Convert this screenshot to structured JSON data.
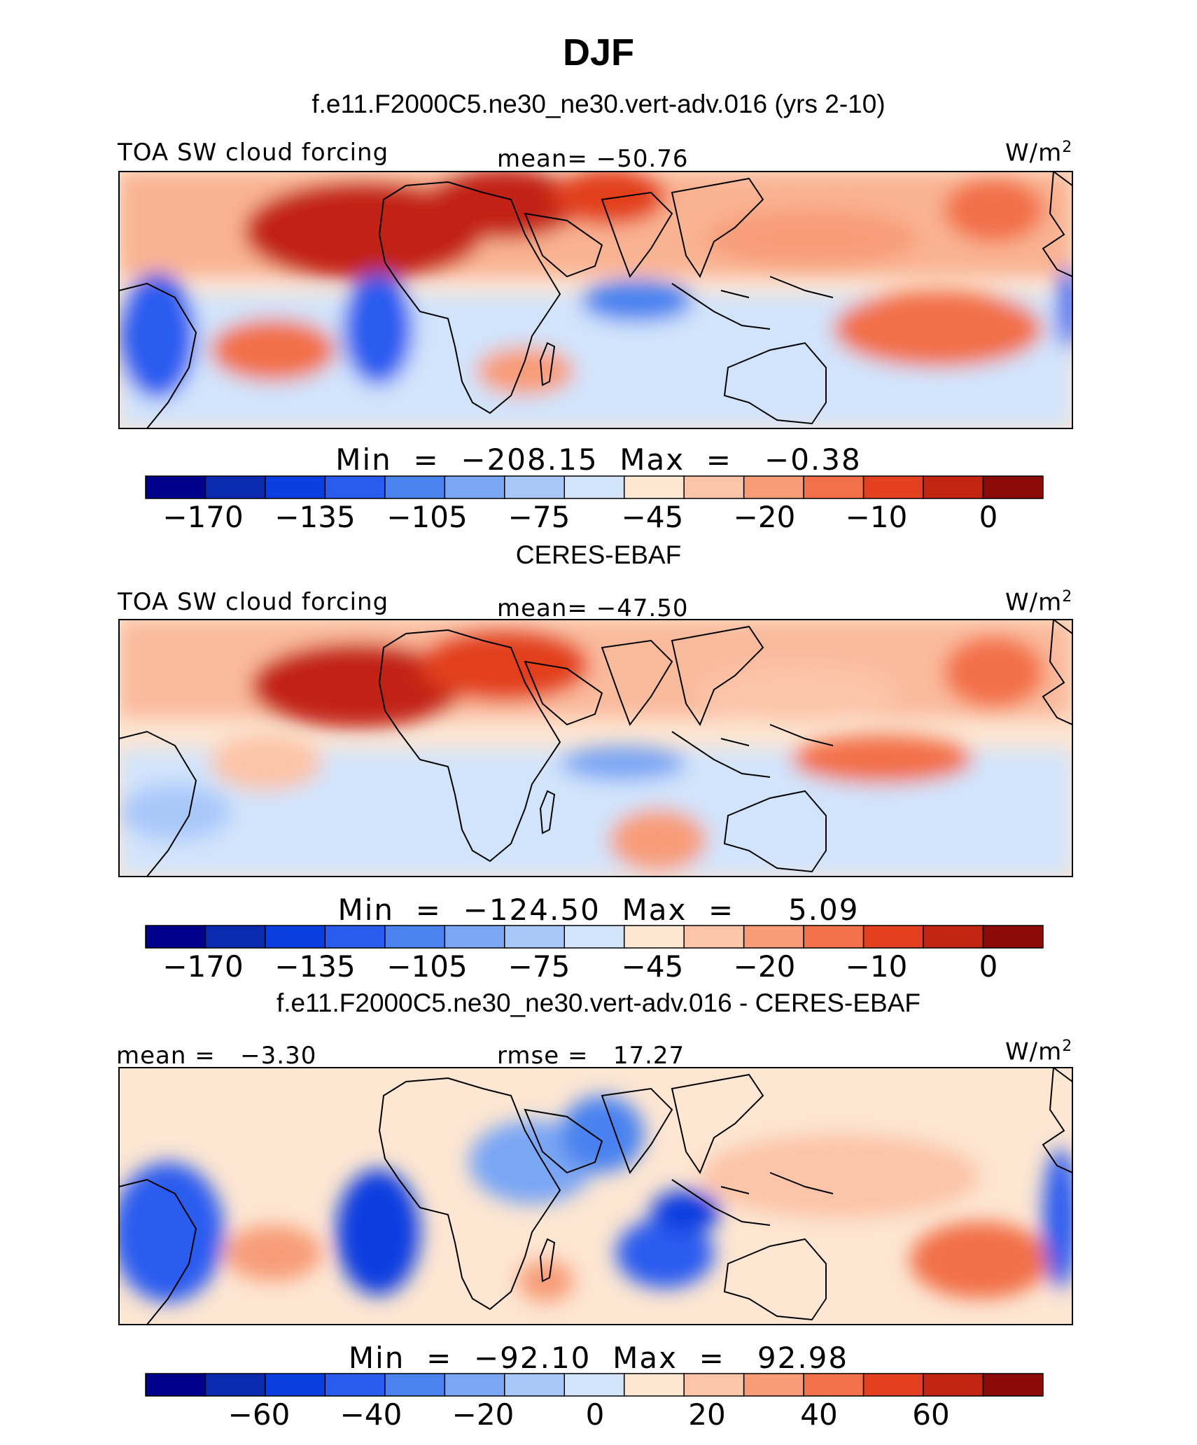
{
  "figure": {
    "title": "DJF",
    "panels": [
      {
        "title": "f.e11.F2000C5.ne30_ne30.vert-adv.016 (yrs 2-10)",
        "left_label": "TOA SW cloud forcing",
        "center_label": "mean= −50.76",
        "units": "W/m",
        "units_sup": "2",
        "minmax": "Min  =  −208.15  Max  =   −0.38",
        "colorbar_ticks": [
          "−170",
          "−135",
          "−105",
          "−75",
          "−45",
          "−20",
          "−10",
          "0"
        ]
      },
      {
        "title": "CERES-EBAF",
        "left_label": "TOA SW cloud forcing",
        "center_label": "mean= −47.50",
        "units": "W/m",
        "units_sup": "2",
        "minmax": "Min  =  −124.50  Max  =     5.09",
        "colorbar_ticks": [
          "−170",
          "−135",
          "−105",
          "−75",
          "−45",
          "−20",
          "−10",
          "0"
        ]
      },
      {
        "title": "f.e11.F2000C5.ne30_ne30.vert-adv.016 - CERES-EBAF",
        "left_label": "mean =   −3.30",
        "center_label": "rmse =   17.27",
        "units": "W/m",
        "units_sup": "2",
        "minmax": "Min  =  −92.10  Max  =   92.98",
        "colorbar_ticks": [
          "−60",
          "−40",
          "−20",
          "0",
          "20",
          "40",
          "60"
        ]
      }
    ],
    "colorbar_colors": [
      "#00008c",
      "#0a2ab0",
      "#0a3ee0",
      "#2a5cf0",
      "#4a82f0",
      "#7aa6f4",
      "#a8c8fa",
      "#d2e4fc",
      "#fde6d2",
      "#fcc4a8",
      "#f89c78",
      "#f2704a",
      "#e2401e",
      "#c22412",
      "#8c0a08"
    ]
  },
  "chart_data": [
    {
      "type": "heatmap",
      "title": "f.e11.F2000C5.ne30_ne30.vert-adv.016 (yrs 2-10)",
      "variable": "TOA SW cloud forcing",
      "units": "W/m2",
      "mean": -50.76,
      "min": -208.15,
      "max": -0.38,
      "colorbar_levels": [
        -170,
        -135,
        -105,
        -75,
        -45,
        -20,
        -10,
        0
      ]
    },
    {
      "type": "heatmap",
      "title": "CERES-EBAF",
      "variable": "TOA SW cloud forcing",
      "units": "W/m2",
      "mean": -47.5,
      "min": -124.5,
      "max": 5.09,
      "colorbar_levels": [
        -170,
        -135,
        -105,
        -75,
        -45,
        -20,
        -10,
        0
      ]
    },
    {
      "type": "heatmap",
      "title": "f.e11.F2000C5.ne30_ne30.vert-adv.016 - CERES-EBAF",
      "units": "W/m2",
      "mean": -3.3,
      "rmse": 17.27,
      "min": -92.1,
      "max": 92.98,
      "colorbar_levels": [
        -60,
        -40,
        -20,
        0,
        20,
        40,
        60
      ]
    }
  ]
}
